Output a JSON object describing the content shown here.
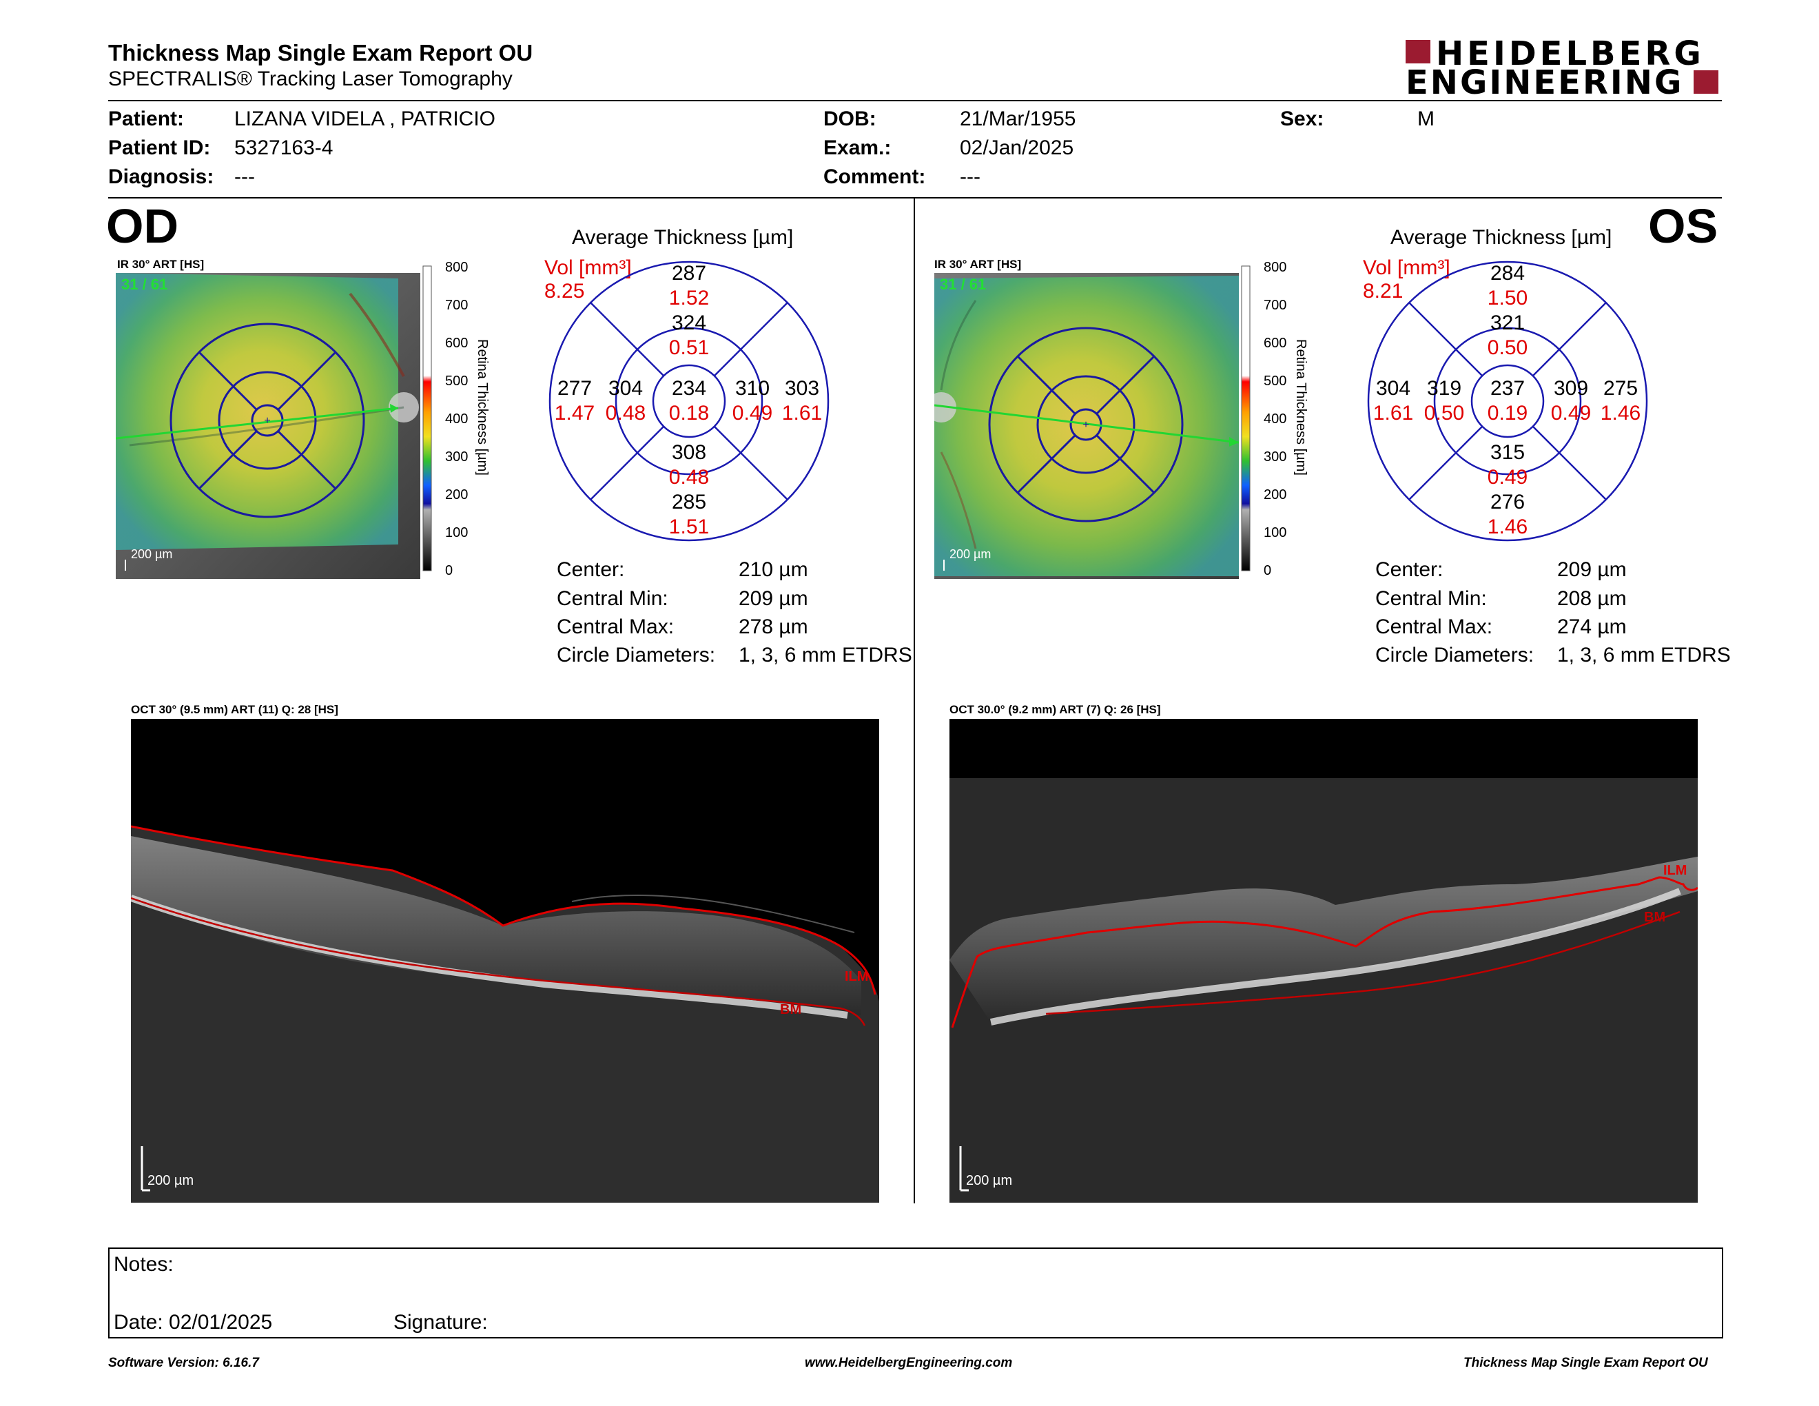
{
  "header": {
    "title": "Thickness Map Single Exam Report OU",
    "subtitle": "SPECTRALIS® Tracking Laser Tomography",
    "logo_line1": "HEIDELBERG",
    "logo_line2": "ENGINEERING",
    "brand_color": "#9b1b30"
  },
  "patient": {
    "patient_label": "Patient:",
    "patient_value": "LIZANA VIDELA , PATRICIO",
    "id_label": "Patient ID:",
    "id_value": "5327163-4",
    "diagnosis_label": "Diagnosis:",
    "diagnosis_value": "---",
    "dob_label": "DOB:",
    "dob_value": "21/Mar/1955",
    "exam_label": "Exam.:",
    "exam_value": "02/Jan/2025",
    "comment_label": "Comment:",
    "comment_value": "---",
    "sex_label": "Sex:",
    "sex_value": "M"
  },
  "od": {
    "eye": "OD",
    "ir_label": "IR 30° ART [HS]",
    "frame_label": "31 / 61",
    "scale_label": "200 µm",
    "colorbar_ticks": [
      "800",
      "700",
      "600",
      "500",
      "400",
      "300",
      "200",
      "100",
      "0"
    ],
    "colorbar_title": "Retina   Thickness [µm]",
    "avg_title": "Average Thickness [µm]",
    "vol_label": "Vol [mm³]",
    "vol_value": "8.25",
    "grid": {
      "outer_sup": "287",
      "outer_sup_vol": "1.52",
      "inner_sup": "324",
      "inner_sup_vol": "0.51",
      "outer_left": "277",
      "outer_left_vol": "1.47",
      "inner_left": "304",
      "inner_left_vol": "0.48",
      "center": "234",
      "center_vol": "0.18",
      "inner_right": "310",
      "inner_right_vol": "0.49",
      "outer_right": "303",
      "outer_right_vol": "1.61",
      "inner_inf": "308",
      "inner_inf_vol": "0.48",
      "outer_inf": "285",
      "outer_inf_vol": "1.51"
    },
    "stats": {
      "center_label": "Center:",
      "center_value": "210 µm",
      "min_label": "Central Min:",
      "min_value": "209 µm",
      "max_label": "Central Max:",
      "max_value": "278 µm",
      "diam_label": "Circle Diameters:",
      "diam_value": "1, 3, 6 mm ETDRS"
    },
    "oct_label": "OCT 30° (9.5 mm) ART (11) Q: 28 [HS]",
    "oct_scale": "200 µm",
    "ilm": "ILM",
    "bm": "BM"
  },
  "os": {
    "eye": "OS",
    "ir_label": "IR 30° ART [HS]",
    "frame_label": "31 / 61",
    "scale_label": "200 µm",
    "colorbar_ticks": [
      "800",
      "700",
      "600",
      "500",
      "400",
      "300",
      "200",
      "100",
      "0"
    ],
    "colorbar_title": "Retina   Thickness [µm]",
    "avg_title": "Average Thickness [µm]",
    "vol_label": "Vol [mm³]",
    "vol_value": "8.21",
    "grid": {
      "outer_sup": "284",
      "outer_sup_vol": "1.50",
      "inner_sup": "321",
      "inner_sup_vol": "0.50",
      "outer_left": "304",
      "outer_left_vol": "1.61",
      "inner_left": "319",
      "inner_left_vol": "0.50",
      "center": "237",
      "center_vol": "0.19",
      "inner_right": "309",
      "inner_right_vol": "0.49",
      "outer_right": "275",
      "outer_right_vol": "1.46",
      "inner_inf": "315",
      "inner_inf_vol": "0.49",
      "outer_inf": "276",
      "outer_inf_vol": "1.46"
    },
    "stats": {
      "center_label": "Center:",
      "center_value": "209 µm",
      "min_label": "Central Min:",
      "min_value": "208 µm",
      "max_label": "Central Max:",
      "max_value": "274 µm",
      "diam_label": "Circle Diameters:",
      "diam_value": "1, 3, 6 mm ETDRS"
    },
    "oct_label": "OCT 30.0° (9.2 mm) ART (7) Q: 26 [HS]",
    "oct_scale": "200 µm",
    "ilm": "ILM",
    "bm": "BM"
  },
  "notes": {
    "notes_label": "Notes:",
    "date_label": "Date: 02/01/2025",
    "signature_label": "Signature:"
  },
  "footer": {
    "software": "Software Version: 6.16.7",
    "website": "www.HeidelbergEngineering.com",
    "report_name": "Thickness Map Single Exam Report OU"
  }
}
